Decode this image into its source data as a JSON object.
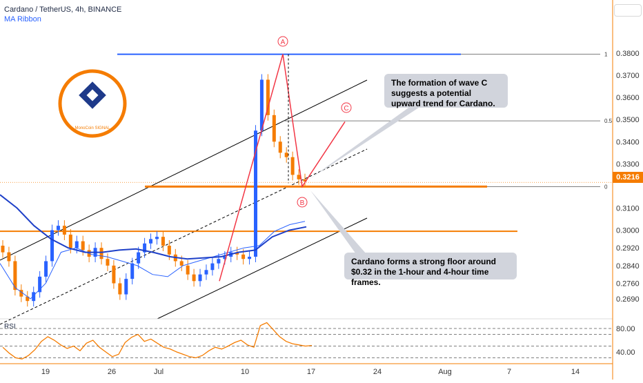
{
  "header": {
    "symbol_line": "Cardano / TetherUS, 4h, BINANCE",
    "indicator": "MA Ribbon"
  },
  "logo": {
    "text": "MonoCoin SIGNAL"
  },
  "callouts": {
    "wave_c": "The formation of wave C suggests a potential upward trend for Cardano.",
    "floor": "Cardano forms a strong floor around $0.32 in the 1-hour and 4-hour time frames."
  },
  "wave_labels": {
    "a": "A",
    "b": "B",
    "c": "C"
  },
  "fib_levels": [
    {
      "label": "1",
      "price": 0.3795
    },
    {
      "label": "0.5",
      "price": 0.3494
    },
    {
      "label": "0",
      "price": 0.3197
    }
  ],
  "current_price": "0.3216",
  "colors": {
    "up": "#2962ff",
    "down": "#f57c00",
    "wave": "#f23645",
    "ma_fast": "#2962ff",
    "ma_slow": "#1e40c8",
    "channel": "#000000",
    "support": "#f57c00",
    "rsi": "#f57c00",
    "accent": "#f57c00"
  },
  "chart_data": [
    {
      "type": "candlestick",
      "title": "Cardano / TetherUS, 4h, BINANCE",
      "xlabel": "",
      "ylabel": "",
      "x_ticks": [
        "19",
        "26",
        "Jul",
        "10",
        "17",
        "24",
        "Aug",
        "7",
        "14"
      ],
      "y_ticks": [
        "0.3800",
        "0.3700",
        "0.3600",
        "0.3500",
        "0.3400",
        "0.3300",
        "0.3100",
        "0.3000",
        "0.2920",
        "0.2840",
        "0.2760",
        "0.2690"
      ],
      "ylim": [
        0.2665,
        0.3845
      ],
      "grid": false,
      "support_levels": [
        0.3197,
        0.2995
      ],
      "resistance_level": 0.3795,
      "last_price": 0.3216,
      "series": [
        {
          "name": "Price",
          "values": [
            0.29,
            0.286,
            0.273,
            0.27,
            0.268,
            0.272,
            0.279,
            0.286,
            0.3,
            0.302,
            0.298,
            0.292,
            0.295,
            0.291,
            0.288,
            0.292,
            0.287,
            0.284,
            0.276,
            0.271,
            0.278,
            0.285,
            0.29,
            0.294,
            0.296,
            0.297,
            0.293,
            0.289,
            0.286,
            0.284,
            0.28,
            0.277,
            0.28,
            0.282,
            0.285,
            0.287,
            0.288,
            0.29,
            0.289,
            0.287,
            0.288,
            0.345,
            0.368,
            0.352,
            0.34,
            0.335,
            0.333,
            0.325,
            0.323,
            0.322
          ]
        },
        {
          "name": "MA fast",
          "values": [
            0.285,
            0.274,
            0.269,
            0.276,
            0.29,
            0.292,
            0.289,
            0.288,
            0.286,
            0.284,
            0.28,
            0.279,
            0.284,
            0.286,
            0.288,
            0.29,
            0.292,
            0.293,
            0.2995,
            0.3025,
            0.304
          ]
        },
        {
          "name": "MA slow",
          "values": [
            0.316,
            0.31,
            0.302,
            0.296,
            0.292,
            0.29,
            0.29,
            0.291,
            0.2915,
            0.29,
            0.288,
            0.287,
            0.2875,
            0.288,
            0.29,
            0.291,
            0.297,
            0.3,
            0.3015
          ]
        }
      ]
    },
    {
      "type": "line",
      "title": "RSI",
      "y_ticks": [
        "80.00",
        "40.00"
      ],
      "guides": [
        80,
        70,
        50,
        30
      ],
      "series": [
        {
          "name": "RSI",
          "values": [
            48,
            38,
            30,
            28,
            34,
            44,
            58,
            66,
            60,
            52,
            46,
            50,
            42,
            55,
            60,
            48,
            40,
            32,
            36,
            56,
            65,
            70,
            58,
            62,
            55,
            48,
            45,
            40,
            36,
            32,
            30,
            34,
            42,
            48,
            45,
            50,
            56,
            60,
            52,
            48,
            85,
            90,
            78,
            66,
            58,
            54,
            52,
            50,
            51
          ]
        }
      ]
    }
  ]
}
